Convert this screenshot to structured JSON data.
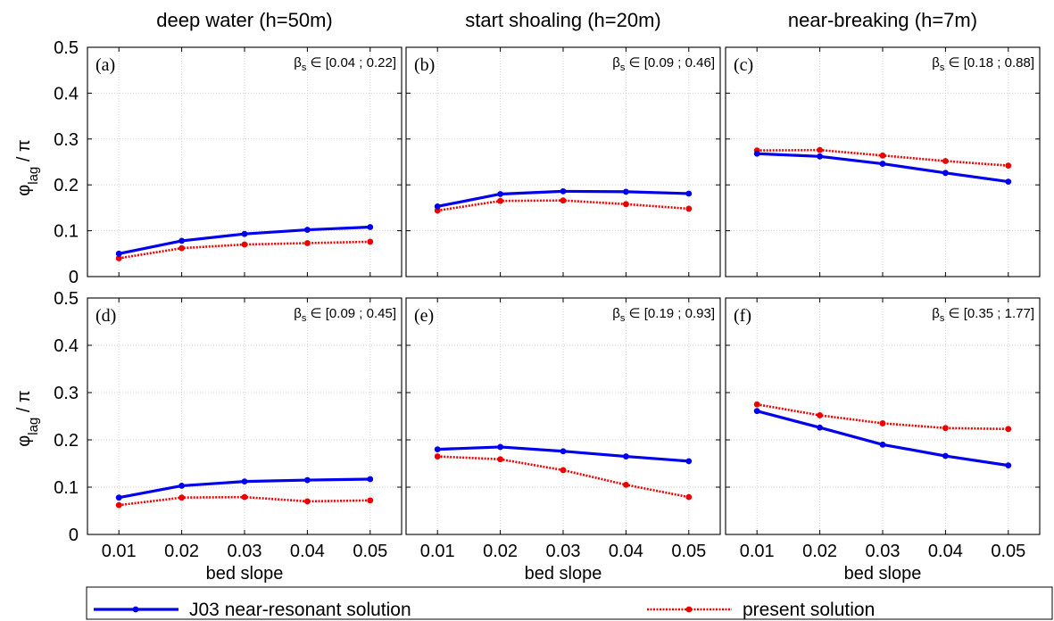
{
  "colors": {
    "blue": "#0000ee",
    "red": "#ee0000",
    "grid": "#cfcfcf"
  },
  "column_titles": [
    "deep water (h=50m)",
    "start shoaling (h=20m)",
    "near-breaking (h=7m)"
  ],
  "ylabel": {
    "base": "φ",
    "sub": "lag",
    "tail": " / π"
  },
  "xlabel": "bed slope",
  "beta_symbol": "β",
  "beta_sub": "s",
  "beta_in": " ∈ ",
  "legend": {
    "j03": "J03 near-resonant solution",
    "present": "present solution"
  },
  "chart_data": [
    {
      "type": "line",
      "panel": "(a)",
      "beta_range": "[0.04 ; 0.22]",
      "xlabel": "",
      "ylabel": "φlag / π",
      "x": [
        0.01,
        0.02,
        0.03,
        0.04,
        0.05
      ],
      "xlim": [
        0.005,
        0.055
      ],
      "ylim": [
        0,
        0.5
      ],
      "yticks": [
        0,
        0.1,
        0.2,
        0.3,
        0.4,
        0.5
      ],
      "grid": true,
      "series": [
        {
          "name": "J03 near-resonant solution",
          "values": [
            0.05,
            0.078,
            0.093,
            0.102,
            0.108
          ]
        },
        {
          "name": "present solution",
          "values": [
            0.04,
            0.062,
            0.07,
            0.073,
            0.076
          ]
        }
      ]
    },
    {
      "type": "line",
      "panel": "(b)",
      "beta_range": "[0.09 ; 0.46]",
      "xlabel": "",
      "ylabel": "",
      "x": [
        0.01,
        0.02,
        0.03,
        0.04,
        0.05
      ],
      "xlim": [
        0.005,
        0.055
      ],
      "ylim": [
        0,
        0.5
      ],
      "yticks": [
        0,
        0.1,
        0.2,
        0.3,
        0.4,
        0.5
      ],
      "grid": true,
      "series": [
        {
          "name": "J03 near-resonant solution",
          "values": [
            0.153,
            0.18,
            0.186,
            0.185,
            0.181
          ]
        },
        {
          "name": "present solution",
          "values": [
            0.144,
            0.165,
            0.166,
            0.158,
            0.148
          ]
        }
      ]
    },
    {
      "type": "line",
      "panel": "(c)",
      "beta_range": "[0.18 ; 0.88]",
      "xlabel": "",
      "ylabel": "",
      "x": [
        0.01,
        0.02,
        0.03,
        0.04,
        0.05
      ],
      "xlim": [
        0.005,
        0.055
      ],
      "ylim": [
        0,
        0.5
      ],
      "yticks": [
        0,
        0.1,
        0.2,
        0.3,
        0.4,
        0.5
      ],
      "grid": true,
      "series": [
        {
          "name": "J03 near-resonant solution",
          "values": [
            0.268,
            0.262,
            0.246,
            0.226,
            0.207
          ]
        },
        {
          "name": "present solution",
          "values": [
            0.275,
            0.276,
            0.264,
            0.252,
            0.242
          ]
        }
      ]
    },
    {
      "type": "line",
      "panel": "(d)",
      "beta_range": "[0.09 ; 0.45]",
      "xlabel": "bed slope",
      "ylabel": "φlag / π",
      "x": [
        0.01,
        0.02,
        0.03,
        0.04,
        0.05
      ],
      "xlim": [
        0.005,
        0.055
      ],
      "ylim": [
        0,
        0.5
      ],
      "yticks": [
        0,
        0.1,
        0.2,
        0.3,
        0.4,
        0.5
      ],
      "grid": true,
      "series": [
        {
          "name": "J03 near-resonant solution",
          "values": [
            0.078,
            0.103,
            0.112,
            0.115,
            0.117
          ]
        },
        {
          "name": "present solution",
          "values": [
            0.062,
            0.078,
            0.079,
            0.07,
            0.072
          ]
        }
      ]
    },
    {
      "type": "line",
      "panel": "(e)",
      "beta_range": "[0.19 ; 0.93]",
      "xlabel": "bed slope",
      "ylabel": "",
      "x": [
        0.01,
        0.02,
        0.03,
        0.04,
        0.05
      ],
      "xlim": [
        0.005,
        0.055
      ],
      "ylim": [
        0,
        0.5
      ],
      "yticks": [
        0,
        0.1,
        0.2,
        0.3,
        0.4,
        0.5
      ],
      "grid": true,
      "series": [
        {
          "name": "J03 near-resonant solution",
          "values": [
            0.18,
            0.185,
            0.176,
            0.165,
            0.155
          ]
        },
        {
          "name": "present solution",
          "values": [
            0.165,
            0.159,
            0.136,
            0.105,
            0.079
          ]
        }
      ]
    },
    {
      "type": "line",
      "panel": "(f)",
      "beta_range": "[0.35 ; 1.77]",
      "xlabel": "bed slope",
      "ylabel": "",
      "x": [
        0.01,
        0.02,
        0.03,
        0.04,
        0.05
      ],
      "xlim": [
        0.005,
        0.055
      ],
      "ylim": [
        0,
        0.5
      ],
      "yticks": [
        0,
        0.1,
        0.2,
        0.3,
        0.4,
        0.5
      ],
      "grid": true,
      "series": [
        {
          "name": "J03 near-resonant solution",
          "values": [
            0.261,
            0.226,
            0.19,
            0.166,
            0.146
          ]
        },
        {
          "name": "present solution",
          "values": [
            0.275,
            0.252,
            0.235,
            0.225,
            0.223
          ]
        }
      ]
    }
  ]
}
